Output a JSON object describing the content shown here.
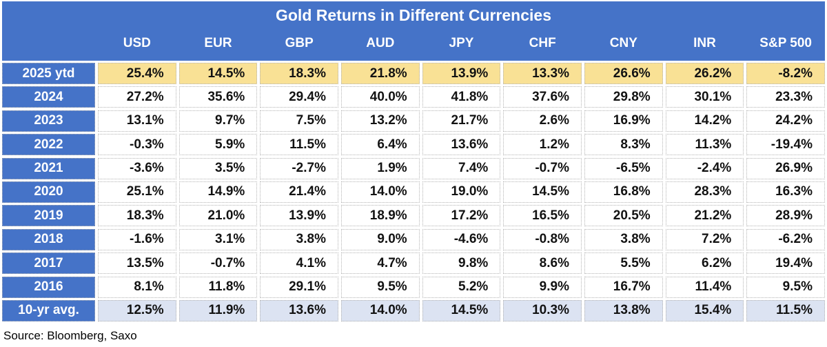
{
  "chart_data": {
    "type": "table",
    "title": "Gold Returns in Different Currencies",
    "source": "Source: Bloomberg, Saxo",
    "columns": [
      "USD",
      "EUR",
      "GBP",
      "AUD",
      "JPY",
      "CHF",
      "CNY",
      "INR",
      "S&P 500"
    ],
    "rows": [
      {
        "label": "2025 ytd",
        "highlight": "ytd",
        "values": [
          "25.4%",
          "14.5%",
          "18.3%",
          "21.8%",
          "13.9%",
          "13.3%",
          "26.6%",
          "26.2%",
          "-8.2%"
        ]
      },
      {
        "label": "2024",
        "highlight": "",
        "values": [
          "27.2%",
          "35.6%",
          "29.4%",
          "40.0%",
          "41.8%",
          "37.6%",
          "29.8%",
          "30.1%",
          "23.3%"
        ]
      },
      {
        "label": "2023",
        "highlight": "",
        "values": [
          "13.1%",
          "9.7%",
          "7.5%",
          "13.2%",
          "21.7%",
          "2.6%",
          "16.9%",
          "14.2%",
          "24.2%"
        ]
      },
      {
        "label": "2022",
        "highlight": "",
        "values": [
          "-0.3%",
          "5.9%",
          "11.5%",
          "6.4%",
          "13.6%",
          "1.2%",
          "8.3%",
          "11.3%",
          "-19.4%"
        ]
      },
      {
        "label": "2021",
        "highlight": "",
        "values": [
          "-3.6%",
          "3.5%",
          "-2.7%",
          "1.9%",
          "7.4%",
          "-0.7%",
          "-6.5%",
          "-2.4%",
          "26.9%"
        ]
      },
      {
        "label": "2020",
        "highlight": "",
        "values": [
          "25.1%",
          "14.9%",
          "21.4%",
          "14.0%",
          "19.0%",
          "14.5%",
          "16.8%",
          "28.3%",
          "16.3%"
        ]
      },
      {
        "label": "2019",
        "highlight": "",
        "values": [
          "18.3%",
          "21.0%",
          "13.9%",
          "18.9%",
          "17.2%",
          "16.5%",
          "20.5%",
          "21.2%",
          "28.9%"
        ]
      },
      {
        "label": "2018",
        "highlight": "",
        "values": [
          "-1.6%",
          "3.1%",
          "3.8%",
          "9.0%",
          "-4.6%",
          "-0.8%",
          "3.8%",
          "7.2%",
          "-6.2%"
        ]
      },
      {
        "label": "2017",
        "highlight": "",
        "values": [
          "13.5%",
          "-0.7%",
          "4.1%",
          "4.7%",
          "9.8%",
          "8.6%",
          "5.5%",
          "6.2%",
          "19.4%"
        ]
      },
      {
        "label": "2016",
        "highlight": "",
        "values": [
          "8.1%",
          "11.8%",
          "29.1%",
          "9.5%",
          "5.2%",
          "9.9%",
          "16.7%",
          "11.4%",
          "9.5%"
        ]
      },
      {
        "label": "10-yr avg.",
        "highlight": "avg",
        "values": [
          "12.5%",
          "11.9%",
          "13.6%",
          "14.0%",
          "14.5%",
          "10.3%",
          "13.8%",
          "15.4%",
          "11.5%"
        ]
      }
    ],
    "colors": {
      "header_blue": "#4573C8",
      "highlight_yellow": "#F9E195",
      "avg_row_bg": "#DCE3F2",
      "grid_dot": "#b3b3b3",
      "text_dark": "#121212"
    }
  }
}
